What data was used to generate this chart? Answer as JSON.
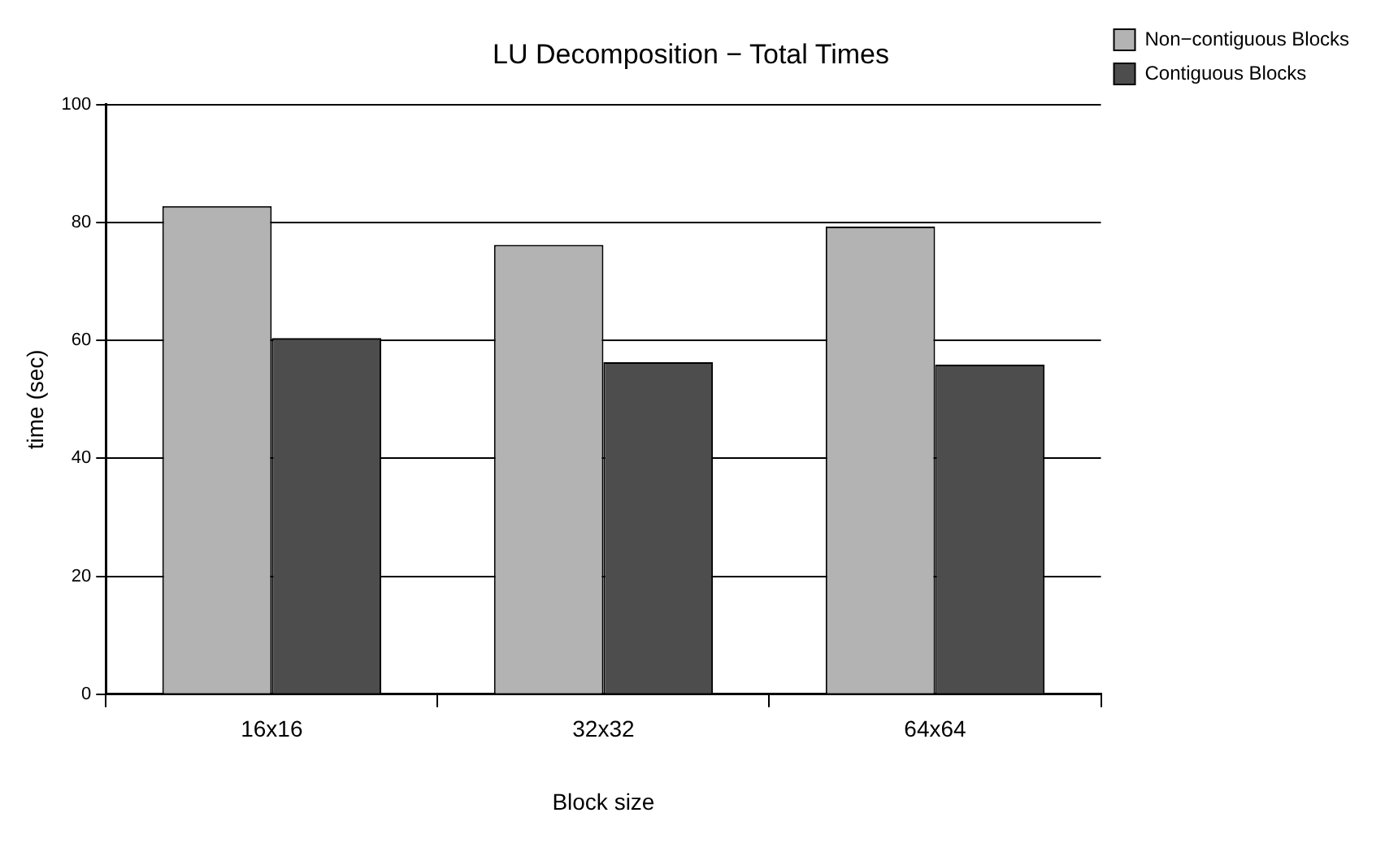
{
  "chart_data": {
    "type": "bar",
    "title": "LU Decomposition − Total Times",
    "xlabel": "Block size",
    "ylabel": "time (sec)",
    "categories": [
      "16x16",
      "32x32",
      "64x64"
    ],
    "series": [
      {
        "name": "Non−contiguous Blocks",
        "color": "#b3b3b3",
        "values": [
          82.8,
          76.2,
          79.3
        ]
      },
      {
        "name": "Contiguous Blocks",
        "color": "#4d4d4d",
        "values": [
          60.4,
          56.3,
          55.9
        ]
      }
    ],
    "ylim": [
      0,
      100
    ],
    "yticks": [
      0,
      20,
      40,
      60,
      80,
      100
    ],
    "grid": "y",
    "legend": "top right"
  }
}
